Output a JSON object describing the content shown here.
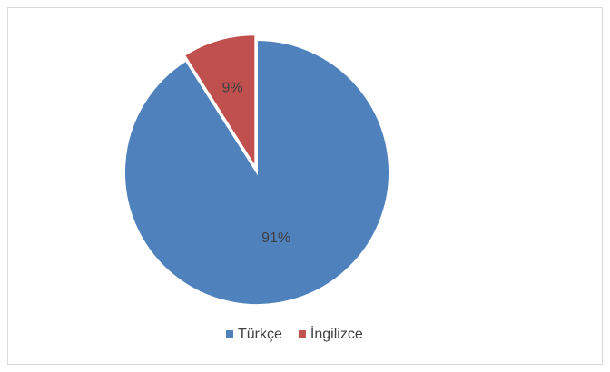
{
  "chart_data": {
    "type": "pie",
    "categories": [
      "Türkçe",
      "İngilizce"
    ],
    "values": [
      91,
      9
    ],
    "value_labels": [
      "91%",
      "9%"
    ],
    "colors": [
      "#4f81bd",
      "#c0504d"
    ],
    "legend": "bottom"
  }
}
